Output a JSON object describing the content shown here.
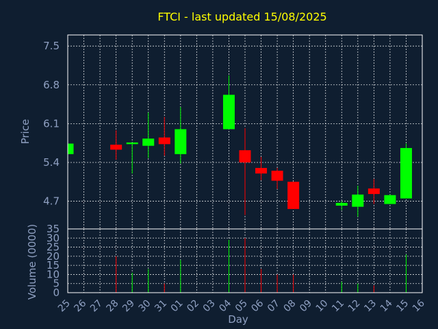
{
  "chart_data": {
    "type": "candlestick",
    "title": "FTCI - last updated 15/08/2025",
    "xlabel": "Day",
    "price_panel": {
      "ylabel": "Price",
      "yticks": [
        "4.7",
        "5.4",
        "6.1",
        "6.8",
        "7.5"
      ],
      "ylim": [
        4.2,
        7.7
      ]
    },
    "volume_panel": {
      "ylabel": "Volume (0000)",
      "yticks": [
        "0",
        "5",
        "10",
        "15",
        "20",
        "25",
        "30",
        "35"
      ],
      "ylim": [
        0,
        35
      ]
    },
    "categories": [
      "25",
      "26",
      "27",
      "28",
      "29",
      "30",
      "31",
      "01",
      "02",
      "03",
      "04",
      "05",
      "06",
      "07",
      "08",
      "09",
      "10",
      "11",
      "12",
      "13",
      "14",
      "15",
      "16"
    ],
    "candles": [
      {
        "x": "25",
        "open": 5.55,
        "high": 5.74,
        "low": 5.55,
        "close": 5.74,
        "volume": 0
      },
      {
        "x": "28",
        "open": 5.72,
        "high": 5.98,
        "low": 5.45,
        "close": 5.63,
        "volume": 20
      },
      {
        "x": "29",
        "open": 5.73,
        "high": 5.75,
        "low": 5.2,
        "close": 5.76,
        "volume": 11
      },
      {
        "x": "30",
        "open": 5.7,
        "high": 6.3,
        "low": 5.48,
        "close": 5.83,
        "volume": 13
      },
      {
        "x": "31",
        "open": 5.85,
        "high": 6.22,
        "low": 5.52,
        "close": 5.73,
        "volume": 5
      },
      {
        "x": "01",
        "open": 5.55,
        "high": 6.4,
        "low": 5.38,
        "close": 6.0,
        "volume": 18
      },
      {
        "x": "04",
        "open": 6.0,
        "high": 6.97,
        "low": 6.0,
        "close": 6.62,
        "volume": 29
      },
      {
        "x": "05",
        "open": 5.62,
        "high": 6.02,
        "low": 4.45,
        "close": 5.4,
        "volume": 30
      },
      {
        "x": "06",
        "open": 5.3,
        "high": 5.5,
        "low": 5.08,
        "close": 5.2,
        "volume": 13
      },
      {
        "x": "07",
        "open": 5.25,
        "high": 5.3,
        "low": 4.92,
        "close": 5.07,
        "volume": 10
      },
      {
        "x": "08",
        "open": 5.05,
        "high": 5.05,
        "low": 4.56,
        "close": 4.56,
        "volume": 10
      },
      {
        "x": "11",
        "open": 4.62,
        "high": 4.7,
        "low": 4.54,
        "close": 4.67,
        "volume": 6
      },
      {
        "x": "12",
        "open": 4.6,
        "high": 4.98,
        "low": 4.42,
        "close": 4.82,
        "volume": 5
      },
      {
        "x": "13",
        "open": 4.93,
        "high": 5.1,
        "low": 4.65,
        "close": 4.83,
        "volume": 4
      },
      {
        "x": "14",
        "open": 4.65,
        "high": 4.82,
        "low": 4.65,
        "close": 4.81,
        "volume": 0
      },
      {
        "x": "15",
        "open": 4.75,
        "high": 5.74,
        "low": 4.75,
        "close": 5.66,
        "volume": 21
      }
    ],
    "colors": {
      "up": "#00ff00",
      "down": "#ff0000",
      "background": "#0f1e30",
      "title": "#ffff00",
      "text": "#8fa0c2",
      "grid": "#ffffff"
    },
    "grid": true
  }
}
